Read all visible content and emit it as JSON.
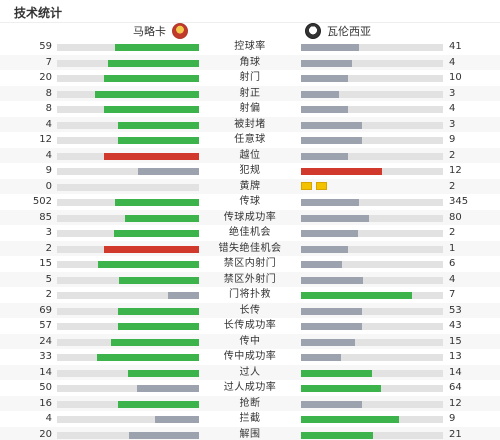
{
  "header": {
    "title": "技术统计"
  },
  "teams": {
    "home": "马略卡",
    "away": "瓦伦西亚"
  },
  "colors": {
    "green": "#3cb44b",
    "grey": "#9ca3af",
    "red": "#d0392b",
    "track": "#e2e2e2",
    "yellow": "#f2c200"
  },
  "stats": [
    {
      "label": "控球率",
      "home": "59",
      "away": "41",
      "home_frac": 0.59,
      "away_frac": 0.41,
      "home_color": "green",
      "away_color": "grey"
    },
    {
      "label": "角球",
      "home": "7",
      "away": "4",
      "home_frac": 0.64,
      "away_frac": 0.36,
      "home_color": "green",
      "away_color": "grey"
    },
    {
      "label": "射门",
      "home": "20",
      "away": "10",
      "home_frac": 0.67,
      "away_frac": 0.33,
      "home_color": "green",
      "away_color": "grey"
    },
    {
      "label": "射正",
      "home": "8",
      "away": "3",
      "home_frac": 0.73,
      "away_frac": 0.27,
      "home_color": "green",
      "away_color": "grey"
    },
    {
      "label": "射偏",
      "home": "8",
      "away": "4",
      "home_frac": 0.67,
      "away_frac": 0.33,
      "home_color": "green",
      "away_color": "grey"
    },
    {
      "label": "被封堵",
      "home": "4",
      "away": "3",
      "home_frac": 0.57,
      "away_frac": 0.43,
      "home_color": "green",
      "away_color": "grey"
    },
    {
      "label": "任意球",
      "home": "12",
      "away": "9",
      "home_frac": 0.57,
      "away_frac": 0.43,
      "home_color": "green",
      "away_color": "grey"
    },
    {
      "label": "越位",
      "home": "4",
      "away": "2",
      "home_frac": 0.67,
      "away_frac": 0.33,
      "home_color": "red",
      "away_color": "grey"
    },
    {
      "label": "犯规",
      "home": "9",
      "away": "12",
      "home_frac": 0.43,
      "away_frac": 0.57,
      "home_color": "grey",
      "away_color": "red"
    },
    {
      "label": "黄牌",
      "home": "0",
      "away": "2",
      "home_frac": 0,
      "away_frac": 0,
      "home_color": "grey",
      "away_color": "grey",
      "cards": 2
    },
    {
      "label": "传球",
      "home": "502",
      "away": "345",
      "home_frac": 0.59,
      "away_frac": 0.41,
      "home_color": "green",
      "away_color": "grey"
    },
    {
      "label": "传球成功率",
      "home": "85",
      "away": "80",
      "home_frac": 0.52,
      "away_frac": 0.48,
      "home_color": "green",
      "away_color": "grey"
    },
    {
      "label": "绝佳机会",
      "home": "3",
      "away": "2",
      "home_frac": 0.6,
      "away_frac": 0.4,
      "home_color": "green",
      "away_color": "grey"
    },
    {
      "label": "错失绝佳机会",
      "home": "2",
      "away": "1",
      "home_frac": 0.67,
      "away_frac": 0.33,
      "home_color": "red",
      "away_color": "grey"
    },
    {
      "label": "禁区内射门",
      "home": "15",
      "away": "6",
      "home_frac": 0.71,
      "away_frac": 0.29,
      "home_color": "green",
      "away_color": "grey"
    },
    {
      "label": "禁区外射门",
      "home": "5",
      "away": "4",
      "home_frac": 0.56,
      "away_frac": 0.44,
      "home_color": "green",
      "away_color": "grey"
    },
    {
      "label": "门将扑救",
      "home": "2",
      "away": "7",
      "home_frac": 0.22,
      "away_frac": 0.78,
      "home_color": "grey",
      "away_color": "green"
    },
    {
      "label": "长传",
      "home": "69",
      "away": "53",
      "home_frac": 0.57,
      "away_frac": 0.43,
      "home_color": "green",
      "away_color": "grey"
    },
    {
      "label": "长传成功率",
      "home": "57",
      "away": "43",
      "home_frac": 0.57,
      "away_frac": 0.43,
      "home_color": "green",
      "away_color": "grey"
    },
    {
      "label": "传中",
      "home": "24",
      "away": "15",
      "home_frac": 0.62,
      "away_frac": 0.38,
      "home_color": "green",
      "away_color": "grey"
    },
    {
      "label": "传中成功率",
      "home": "33",
      "away": "13",
      "home_frac": 0.72,
      "away_frac": 0.28,
      "home_color": "green",
      "away_color": "grey"
    },
    {
      "label": "过人",
      "home": "14",
      "away": "14",
      "home_frac": 0.5,
      "away_frac": 0.5,
      "home_color": "green",
      "away_color": "green"
    },
    {
      "label": "过人成功率",
      "home": "50",
      "away": "64",
      "home_frac": 0.44,
      "away_frac": 0.56,
      "home_color": "grey",
      "away_color": "green"
    },
    {
      "label": "抢断",
      "home": "16",
      "away": "12",
      "home_frac": 0.57,
      "away_frac": 0.43,
      "home_color": "green",
      "away_color": "grey"
    },
    {
      "label": "拦截",
      "home": "4",
      "away": "9",
      "home_frac": 0.31,
      "away_frac": 0.69,
      "home_color": "grey",
      "away_color": "green"
    },
    {
      "label": "解围",
      "home": "20",
      "away": "21",
      "home_frac": 0.49,
      "away_frac": 0.51,
      "home_color": "grey",
      "away_color": "green"
    }
  ]
}
